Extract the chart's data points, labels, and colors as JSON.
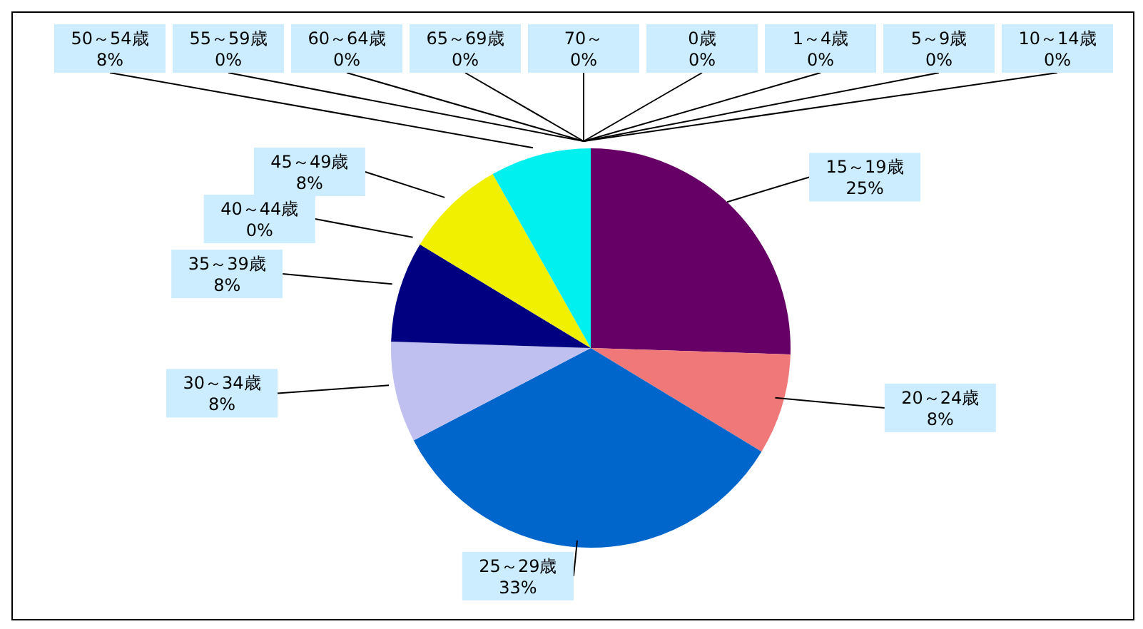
{
  "chart_data": {
    "type": "pie",
    "categories": [
      "0歳",
      "1～4歳",
      "5～9歳",
      "10～14歳",
      "15～19歳",
      "20～24歳",
      "25～29歳",
      "30～34歳",
      "35～39歳",
      "40～44歳",
      "45～49歳",
      "50～54歳",
      "55～59歳",
      "60～64歳",
      "65～69歳",
      "70～"
    ],
    "values": [
      0,
      0,
      0,
      0,
      25,
      8,
      33,
      8,
      8,
      0,
      8,
      8,
      0,
      0,
      0,
      0
    ],
    "value_labels": [
      "0%",
      "0%",
      "0%",
      "0%",
      "25%",
      "8%",
      "33%",
      "8%",
      "8%",
      "0%",
      "8%",
      "8%",
      "0%",
      "0%",
      "0%",
      "0%"
    ],
    "colors": [
      "#ff0000",
      "#ff8000",
      "#008000",
      "#808080",
      "#660066",
      "#f07878",
      "#0066cc",
      "#c0c0f0",
      "#000080",
      "#808000",
      "#f0f000",
      "#00f0f0",
      "#800000",
      "#008080",
      "#ff00ff",
      "#404040"
    ]
  }
}
